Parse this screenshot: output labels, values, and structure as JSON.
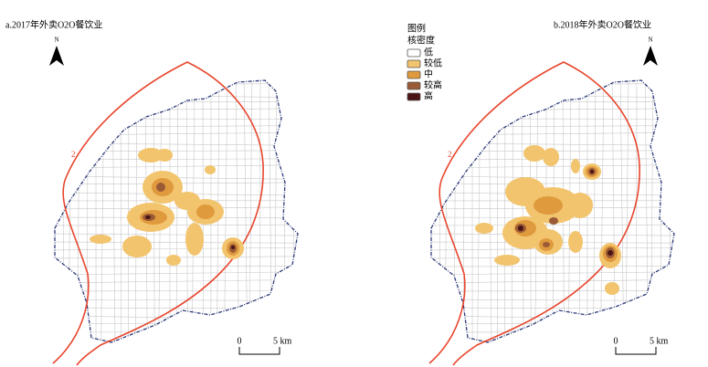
{
  "panels": [
    {
      "title": "a.2017年外卖O2O餐饮业",
      "north": "N",
      "ring_label": "2",
      "scale": {
        "start": "0",
        "end": "5 km"
      }
    },
    {
      "title": "b.2018年外卖O2O餐饮业",
      "north": "N",
      "ring_label": "2",
      "scale": {
        "start": "0",
        "end": "5 km"
      }
    }
  ],
  "legend": {
    "title": "图例",
    "subtitle": "核密度",
    "items": [
      {
        "label": "低",
        "color": "#ffffff"
      },
      {
        "label": "较低",
        "color": "#f2c46d"
      },
      {
        "label": "中",
        "color": "#e09a3e"
      },
      {
        "label": "较高",
        "color": "#9a5a35"
      },
      {
        "label": "高",
        "color": "#4a1414"
      }
    ]
  }
}
